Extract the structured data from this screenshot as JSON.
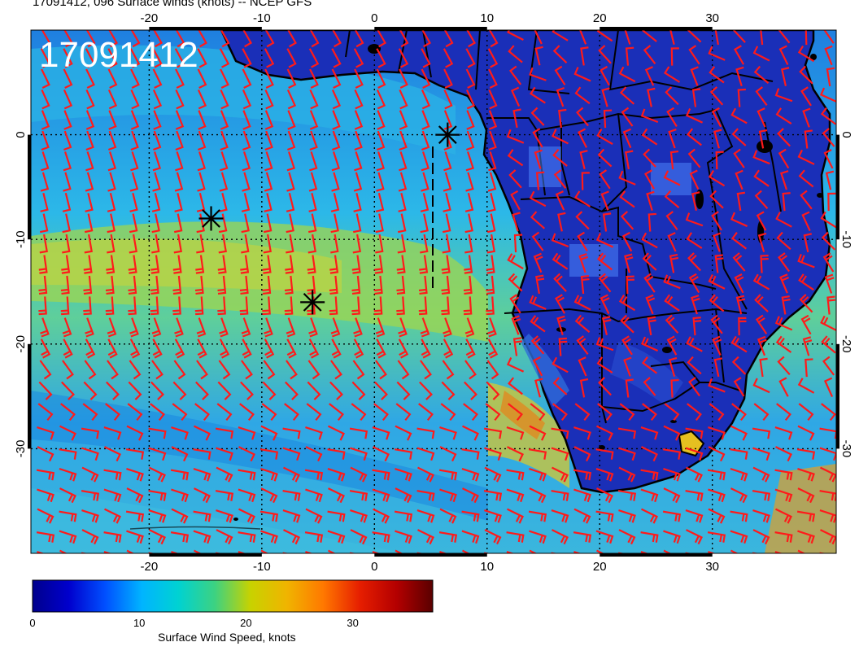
{
  "header": {
    "title": "17091412, 096 Surface winds (knots) -- NCEP GFS"
  },
  "map": {
    "date_stamp": "17091412",
    "lon_labels": [
      "-20",
      "-10",
      "0",
      "10",
      "20",
      "30"
    ],
    "lon_values": [
      -20,
      -10,
      0,
      10,
      20,
      30
    ],
    "lat_labels": [
      "0",
      "-10",
      "-20",
      "-30"
    ],
    "lat_values": [
      0,
      -10,
      -20,
      -30
    ],
    "lon_range": [
      -30.5,
      41
    ],
    "lat_range": [
      -40,
      10
    ],
    "graticule": true,
    "storm_markers": [
      {
        "lon": 6.5,
        "lat": 0
      },
      {
        "lon": -14.5,
        "lat": -8
      },
      {
        "lon": -5.5,
        "lat": -16
      }
    ],
    "colors": {
      "barbs": "#ff1a1a",
      "coastlines": "#000000",
      "markers": "#000000"
    }
  },
  "colorbar": {
    "title": "Surface Wind Speed, knots",
    "tick_labels": [
      "0",
      "10",
      "20",
      "30"
    ],
    "tick_values": [
      0,
      10,
      20,
      30
    ],
    "range": [
      0,
      37.5
    ],
    "colormap": [
      "#00008c",
      "#0000cd",
      "#0050ff",
      "#00b4ff",
      "#00d2d2",
      "#3cd282",
      "#c8d200",
      "#f0b400",
      "#ff7800",
      "#e61e00",
      "#b40000",
      "#5a0000"
    ]
  }
}
